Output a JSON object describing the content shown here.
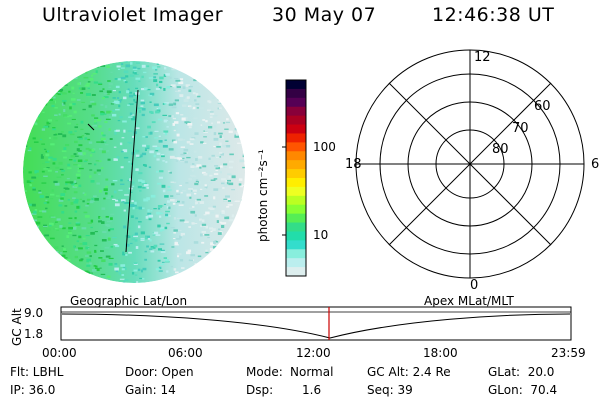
{
  "header": {
    "instrument": "Ultraviolet Imager",
    "date": "30 May 07",
    "time": "12:46:38 UT"
  },
  "colorbar": {
    "label": "photon cm⁻²s⁻¹",
    "ticks": [
      "100",
      "10"
    ],
    "colors": [
      "#000033",
      "#330044",
      "#550055",
      "#88003a",
      "#aa0022",
      "#cc0011",
      "#ee2200",
      "#ff5500",
      "#ff8800",
      "#ffaa00",
      "#ffcc00",
      "#ffee00",
      "#eeff22",
      "#bbff22",
      "#88ff33",
      "#55ee55",
      "#33dd88",
      "#22ddaa",
      "#33ddcc",
      "#88eedd",
      "#bbeeee",
      "#ddeeee"
    ]
  },
  "polar_plot": {
    "mlt_labels": {
      "top": "12",
      "bottom": "0",
      "left": "18",
      "right": "6"
    },
    "lat_labels": [
      "60",
      "70",
      "80"
    ]
  },
  "timeline": {
    "left_title": "Geographic Lat/Lon",
    "right_title": "Apex MLat/MLT",
    "axis_title": "GC Alt",
    "y_ticks": [
      "9.0",
      "1.8"
    ],
    "x_ticks": [
      "00:00",
      "06:00",
      "12:00",
      "18:00",
      "23:59"
    ]
  },
  "params": {
    "flt": "Flt: LBHL",
    "ip": "IP: 36.0",
    "door": "Door: Open",
    "gain": "Gain: 14",
    "mode_label": "Mode:",
    "mode_value": "Normal",
    "dsp_label": "Dsp:",
    "dsp_value": "1.6",
    "gc_alt": "GC Alt: 2.4 Re",
    "seq": "Seq: 39",
    "glat": "GLat:  20.0",
    "glon": "GLon:  70.4"
  },
  "colors": {
    "cursor": "#cc0000",
    "image_bright": "#33dd55",
    "image_mid": "#33ddaa",
    "image_dim": "#ddeeee"
  }
}
